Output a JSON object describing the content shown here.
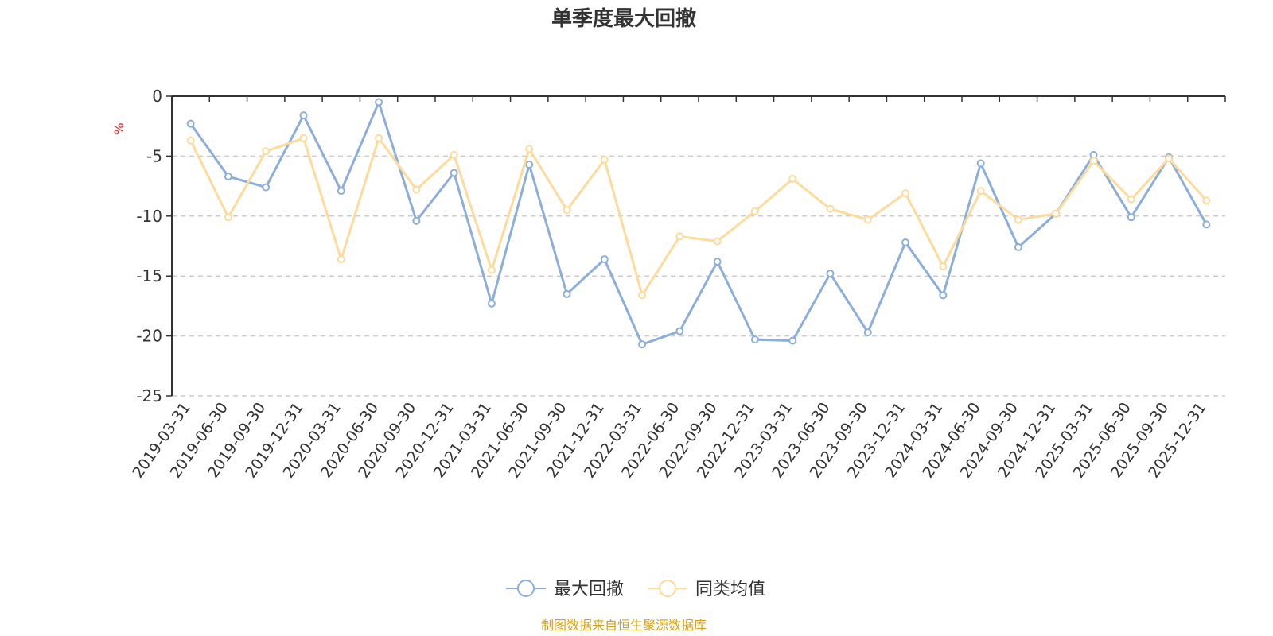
{
  "chart_data": {
    "type": "line",
    "title": "单季度最大回撤",
    "ylabel": "%",
    "ylim": [
      -25,
      0
    ],
    "yticks": [
      0,
      -5,
      -10,
      -15,
      -20,
      -25
    ],
    "grid": true,
    "legend_position": "bottom",
    "categories": [
      "2019-03-31",
      "2019-06-30",
      "2019-09-30",
      "2019-12-31",
      "2020-03-31",
      "2020-06-30",
      "2020-09-30",
      "2020-12-31",
      "2021-03-31",
      "2021-06-30",
      "2021-09-30",
      "2021-12-31",
      "2022-03-31",
      "2022-06-30",
      "2022-09-30",
      "2022-12-31",
      "2023-03-31",
      "2023-06-30",
      "2023-09-30",
      "2023-12-31",
      "2024-03-31",
      "2024-06-30",
      "2024-09-30",
      "2024-12-31",
      "2025-03-31",
      "2025-06-30",
      "2025-09-30",
      "2025-12-31"
    ],
    "series": [
      {
        "name": "最大回撤",
        "color": "#8caed9",
        "values": [
          -2.3,
          -6.7,
          -7.6,
          -1.6,
          -7.9,
          -0.5,
          -10.4,
          -6.4,
          -17.3,
          -5.7,
          -16.5,
          -13.6,
          -20.7,
          -19.6,
          -13.8,
          -20.3,
          -20.4,
          -14.8,
          -19.7,
          -12.2,
          -16.6,
          -5.6,
          -12.6,
          -9.8,
          -4.9,
          -10.1,
          -5.1,
          -10.7
        ]
      },
      {
        "name": "同类均值",
        "color": "#fddb9c",
        "values": [
          -3.7,
          -10.1,
          -4.6,
          -3.5,
          -13.6,
          -3.5,
          -7.8,
          -4.9,
          -14.5,
          -4.4,
          -9.5,
          -5.3,
          -16.6,
          -11.7,
          -12.1,
          -9.6,
          -6.9,
          -9.4,
          -10.3,
          -8.1,
          -14.2,
          -7.9,
          -10.3,
          -9.8,
          -5.4,
          -8.6,
          -5.2,
          -8.7
        ]
      }
    ]
  },
  "source_note": "制图数据来自恒生聚源数据库",
  "colors": {
    "axis": "#333333",
    "grid": "#cccccc",
    "unit": "#e02020",
    "source": "#d4a017"
  }
}
